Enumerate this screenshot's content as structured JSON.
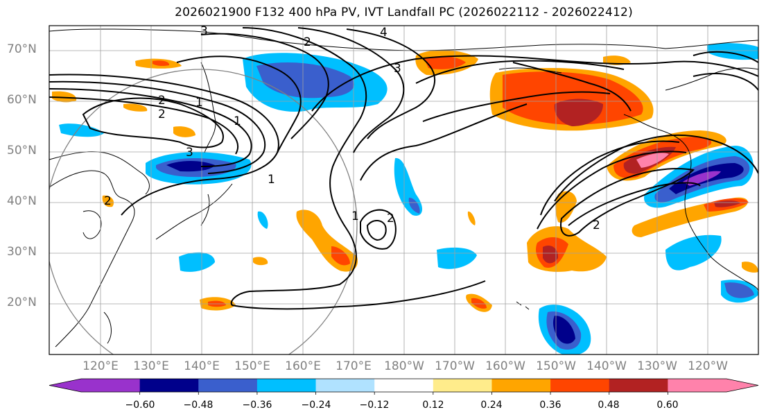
{
  "title": "2026021900 F132 400 hPa PV, IVT Landfall PC (2026022112 - 2026022412)",
  "lat_labels": [
    "70°N",
    "60°N",
    "50°N",
    "40°N",
    "30°N",
    "20°N"
  ],
  "lon_labels": [
    "120°E",
    "130°E",
    "140°E",
    "150°E",
    "160°E",
    "170°E",
    "180°W",
    "170°W",
    "160°W",
    "150°W",
    "140°W",
    "130°W",
    "120°W"
  ],
  "colorbar": {
    "ticks": [
      "−0.60",
      "−0.48",
      "−0.36",
      "−0.24",
      "−0.12",
      "0.12",
      "0.24",
      "0.36",
      "0.48",
      "0.60"
    ],
    "colors": [
      "#9932cc",
      "#00008b",
      "#3a5fcd",
      "#00bfff",
      "#b0e2ff",
      "#ffffff",
      "#ffec8b",
      "#ffa500",
      "#ff4500",
      "#b22222",
      "#ff82ab"
    ]
  },
  "contour_labels": [
    "1",
    "1",
    "1",
    "1",
    "2",
    "2",
    "2",
    "2",
    "2",
    "2",
    "3",
    "3",
    "3",
    "4"
  ]
}
